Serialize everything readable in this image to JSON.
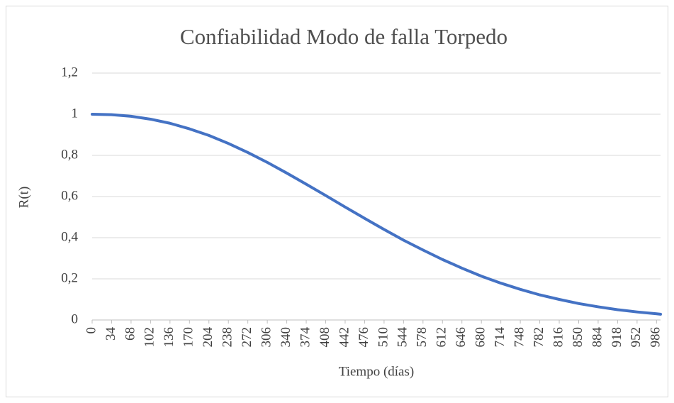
{
  "chart_data": {
    "type": "line",
    "title": "Confiabilidad Modo de falla Torpedo",
    "x_label": "Tiempo (días)",
    "y_label": "R(t)",
    "x": [
      0,
      34,
      68,
      102,
      136,
      170,
      204,
      238,
      272,
      306,
      340,
      374,
      408,
      442,
      476,
      510,
      544,
      578,
      612,
      646,
      680,
      714,
      748,
      782,
      816,
      850,
      884,
      918,
      952,
      986,
      993
    ],
    "series": [
      {
        "name": "R(t)",
        "color": "#4472c4",
        "values": [
          1,
          0.998,
          0.99,
          0.976,
          0.956,
          0.929,
          0.897,
          0.858,
          0.814,
          0.766,
          0.714,
          0.66,
          0.605,
          0.549,
          0.494,
          0.44,
          0.388,
          0.34,
          0.294,
          0.252,
          0.213,
          0.179,
          0.149,
          0.122,
          0.1,
          0.08,
          0.064,
          0.05,
          0.039,
          0.03,
          0.028
        ]
      }
    ],
    "xlim": [
      0,
      993
    ],
    "xticks": [
      0,
      34,
      68,
      102,
      136,
      170,
      204,
      238,
      272,
      306,
      340,
      374,
      408,
      442,
      476,
      510,
      544,
      578,
      612,
      646,
      680,
      714,
      748,
      782,
      816,
      850,
      884,
      918,
      952,
      986
    ],
    "ylim": [
      0,
      1.2
    ],
    "yticks": [
      0,
      {
        "value": 0.2,
        "label": "0,2"
      },
      {
        "value": 0.4,
        "label": "0,4"
      },
      {
        "value": 0.6,
        "label": "0,6"
      },
      {
        "value": 0.8,
        "label": "0,8"
      },
      1,
      {
        "value": 1.2,
        "label": "1,2"
      }
    ],
    "grid": true
  }
}
